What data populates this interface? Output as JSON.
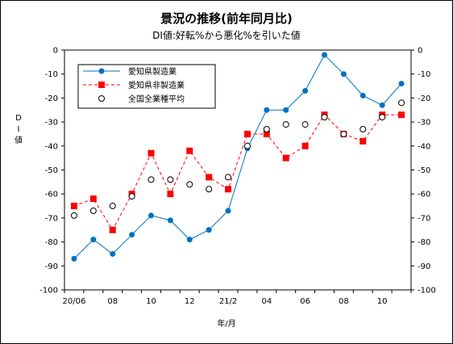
{
  "chart_data": {
    "type": "line",
    "title": "景況の推移(前年同月比)",
    "subtitle": "DI値:好転%から悪化%を引いた値",
    "ylabel": "D I 値",
    "xlabel": "年/月",
    "ylim": [
      -100,
      0
    ],
    "yticks": [
      0,
      -10,
      -20,
      -30,
      -40,
      -50,
      -60,
      -70,
      -80,
      -90,
      -100
    ],
    "x_tick_labels": [
      "20/06",
      "08",
      "10",
      "12",
      "21/2",
      "04",
      "06",
      "08",
      "10"
    ],
    "categories": [
      "20/06",
      "20/07",
      "20/08",
      "20/09",
      "20/10",
      "20/11",
      "20/12",
      "21/01",
      "21/02",
      "21/03",
      "21/04",
      "21/05",
      "21/06",
      "21/07",
      "21/08",
      "21/09",
      "21/10",
      "21/11"
    ],
    "legend_position": "top-left",
    "series": [
      {
        "name": "愛知県製造業",
        "color": "#0070c0",
        "marker": "circle",
        "line": "solid",
        "values": [
          -87,
          -79,
          -85,
          -77,
          -69,
          -71,
          -79,
          -75,
          -67,
          -41,
          -25,
          -25,
          -17,
          -2,
          -10,
          -19,
          -23,
          -14
        ]
      },
      {
        "name": "愛知県非製造業",
        "color": "#ff0000",
        "marker": "square",
        "line": "dashed",
        "values": [
          -65,
          -62,
          -75,
          -60,
          -43,
          -60,
          -42,
          -53,
          -58,
          -35,
          -35,
          -45,
          -40,
          -27,
          -35,
          -38,
          -27,
          -27
        ]
      },
      {
        "name": "全国全業種平均",
        "color": "#000000",
        "marker": "open-circle",
        "line": "none",
        "values": [
          -69,
          -67,
          -65,
          -61,
          -54,
          -54,
          -56,
          -58,
          -53,
          -40,
          -33,
          -31,
          -31,
          -28,
          -35,
          -33,
          -28,
          -22
        ]
      }
    ]
  }
}
